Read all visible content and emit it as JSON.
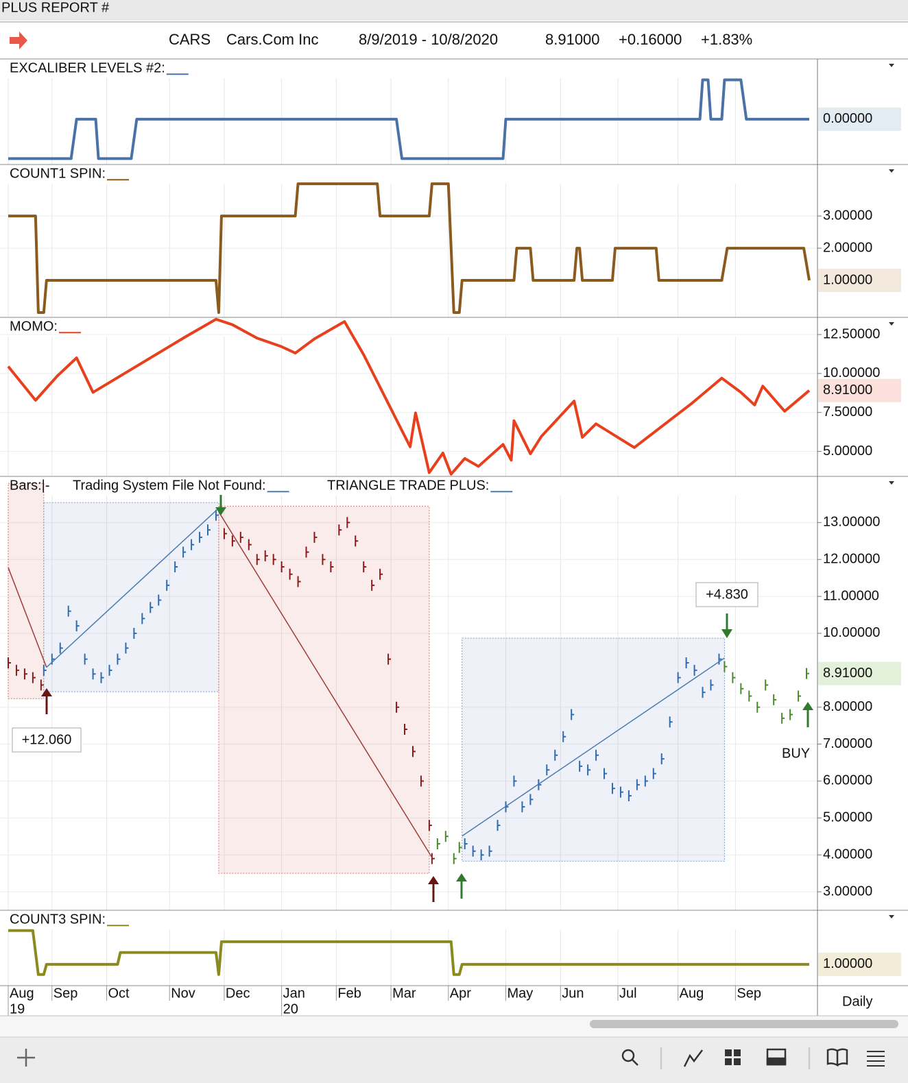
{
  "header": {
    "title": "PLUS REPORT #",
    "symbol": "CARS",
    "name": "Cars.Com Inc",
    "range": "8/9/2019 - 10/8/2020",
    "last": "8.91000",
    "change": "+0.16000",
    "change_pct": "+1.83%"
  },
  "timeframe": "Daily",
  "chart_data": [
    {
      "type": "line",
      "title": "EXCALIBER LEVELS #2:",
      "color": "#4a72a6",
      "label_bg": "#e3ebf3",
      "label_color": "#3b5b85",
      "last_label": "0.00000",
      "xlim": [
        0,
        293
      ],
      "ylim": [
        -1.15,
        1.53
      ],
      "x": [
        0,
        23,
        25,
        32,
        33,
        45,
        47,
        142,
        144,
        181,
        182,
        253,
        254,
        256,
        257,
        261,
        262,
        268,
        270,
        293
      ],
      "values": [
        -1,
        -1,
        0,
        0,
        -1,
        -1,
        0,
        0,
        -1,
        -1,
        0,
        0,
        1,
        1,
        0,
        0,
        1,
        1,
        0,
        0
      ]
    },
    {
      "type": "line",
      "title": "COUNT1 SPIN:",
      "color": "#8b5a1e",
      "label_bg": "#f2e8dc",
      "label_color": "#5a3d12",
      "last_label": "1.00000",
      "xlim": [
        0,
        293
      ],
      "ylim": [
        -0.15,
        4.6
      ],
      "yticks": [
        {
          "value": 2,
          "label": "2.00000"
        },
        {
          "value": 3,
          "label": "3.00000"
        }
      ],
      "x": [
        0,
        10,
        11,
        13,
        14,
        76,
        77,
        78,
        105,
        106,
        135,
        136,
        154,
        155,
        161,
        163,
        165,
        166,
        185,
        186,
        191,
        192,
        207,
        208,
        209,
        210,
        221,
        222,
        237,
        238,
        261,
        263,
        291,
        293
      ],
      "values": [
        3,
        3,
        0,
        0,
        1,
        1,
        0,
        3,
        3,
        4,
        4,
        3,
        3,
        4,
        4,
        0,
        0,
        1,
        1,
        2,
        2,
        1,
        1,
        2,
        2,
        1,
        1,
        2,
        2,
        1,
        1,
        2,
        2,
        1
      ]
    },
    {
      "type": "line",
      "title": "MOMO:",
      "color": "#e8401c",
      "label_bg": "#fbe0dc",
      "label_color": "#c0392b",
      "last_label": "8.91000",
      "xlim": [
        0,
        293
      ],
      "ylim": [
        3.4,
        13.6
      ],
      "yticks": [
        {
          "value": 5,
          "label": "5.00000"
        },
        {
          "value": 7.5,
          "label": "7.50000"
        },
        {
          "value": 10,
          "label": "10.00000"
        },
        {
          "value": 12.5,
          "label": "12.50000"
        }
      ],
      "x": [
        0,
        10,
        18,
        25,
        31,
        65,
        76,
        82,
        91,
        100,
        105,
        112,
        123,
        130,
        147,
        149,
        154,
        159,
        162,
        167,
        172,
        181,
        184,
        185,
        191,
        195,
        207,
        210,
        215,
        229,
        250,
        261,
        268,
        273,
        276,
        284,
        293
      ],
      "values": [
        10.45,
        8.28,
        9.85,
        11.0,
        8.79,
        12.37,
        13.48,
        13.13,
        12.27,
        11.72,
        11.31,
        12.22,
        13.33,
        11.21,
        5.3,
        7.47,
        3.64,
        4.9,
        3.54,
        4.55,
        4.04,
        5.45,
        4.44,
        6.97,
        4.85,
        5.96,
        8.23,
        5.91,
        6.77,
        5.25,
        8.08,
        9.7,
        8.79,
        7.98,
        9.19,
        7.58,
        8.91
      ]
    },
    {
      "type": "stock",
      "titles": [
        "Bars:|-",
        "Trading System File Not Found:",
        "TRIANGLE TRADE PLUS:"
      ],
      "label_bg": "#e3f0da",
      "label_color": "#2f6a1e",
      "last_label": "8.91000",
      "xlim": [
        0,
        293
      ],
      "ylim": [
        2.5,
        14.25
      ],
      "yticks": [
        {
          "value": 3,
          "label": "3.00000"
        },
        {
          "value": 4,
          "label": "4.00000"
        },
        {
          "value": 5,
          "label": "5.00000"
        },
        {
          "value": 6,
          "label": "6.00000"
        },
        {
          "value": 7,
          "label": "7.00000"
        },
        {
          "value": 8,
          "label": "8.00000"
        },
        {
          "value": 10,
          "label": "10.00000"
        },
        {
          "value": 11,
          "label": "11.00000"
        },
        {
          "value": 12,
          "label": "12.00000"
        },
        {
          "value": 13,
          "label": "13.00000"
        }
      ],
      "boxes": [
        {
          "color": "#e07070",
          "x": [
            0,
            13
          ],
          "y": [
            8.23,
            14.06
          ]
        },
        {
          "color": "#7a9ccc",
          "x": [
            13,
            77
          ],
          "y": [
            8.42,
            13.54
          ]
        },
        {
          "color": "#e07070",
          "x": [
            77,
            154
          ],
          "y": [
            3.5,
            13.44
          ]
        },
        {
          "color": "#7a9ccc",
          "x": [
            166,
            262
          ],
          "y": [
            3.83,
            9.87
          ]
        }
      ],
      "trendlines": [
        {
          "color": "#a33a3a",
          "x": [
            0,
            14
          ],
          "values": [
            11.78,
            9.08
          ]
        },
        {
          "color": "#4a7bb0",
          "x": [
            14,
            77
          ],
          "values": [
            9.08,
            13.39
          ]
        },
        {
          "color": "#a33a3a",
          "x": [
            77,
            155
          ],
          "values": [
            13.29,
            3.93
          ]
        },
        {
          "color": "#4a7bb0",
          "x": [
            166,
            262
          ],
          "values": [
            4.51,
            9.33
          ]
        }
      ],
      "segments": [
        {
          "color": "#8b1a1a",
          "x": [
            0,
            3,
            6,
            9,
            12
          ],
          "values": [
            9.2,
            9.0,
            8.9,
            8.8,
            8.6
          ]
        },
        {
          "color": "#2e6bb0",
          "x": [
            13,
            16,
            19,
            22,
            25,
            28,
            31,
            34,
            37,
            40,
            43,
            46,
            49,
            52,
            55,
            58,
            61,
            64,
            67,
            70,
            73,
            76
          ],
          "values": [
            9.0,
            9.3,
            9.6,
            10.6,
            10.2,
            9.3,
            8.9,
            8.8,
            9.0,
            9.3,
            9.6,
            10.0,
            10.4,
            10.7,
            10.9,
            11.3,
            11.8,
            12.2,
            12.4,
            12.6,
            12.8,
            13.2
          ]
        },
        {
          "color": "#8b1a1a",
          "x": [
            79,
            82,
            85,
            88,
            91,
            94,
            97,
            100,
            103,
            106,
            109,
            112,
            115,
            118,
            121,
            124,
            127,
            130,
            133,
            136,
            139,
            142,
            145,
            148,
            151,
            154,
            155
          ],
          "values": [
            12.7,
            12.5,
            12.6,
            12.4,
            12.0,
            12.1,
            12.0,
            11.8,
            11.6,
            11.4,
            12.2,
            12.6,
            12.0,
            11.8,
            12.8,
            13.0,
            12.5,
            11.8,
            11.3,
            11.6,
            9.3,
            8.0,
            7.4,
            6.8,
            6.0,
            4.8,
            3.9
          ]
        },
        {
          "color": "#4a8a2a",
          "x": [
            157,
            160,
            163,
            165
          ],
          "values": [
            4.3,
            4.5,
            3.9,
            4.2
          ]
        },
        {
          "color": "#2e6bb0",
          "x": [
            167,
            170,
            173,
            176,
            179,
            182,
            185,
            188,
            191,
            194,
            197,
            200,
            203,
            206,
            209,
            212,
            215,
            218,
            221,
            224,
            227,
            230,
            233,
            236,
            239,
            242,
            245,
            248,
            251,
            254,
            257,
            260
          ],
          "values": [
            4.3,
            4.1,
            4.0,
            4.1,
            4.8,
            5.3,
            6.0,
            5.3,
            5.5,
            5.9,
            6.3,
            6.7,
            7.2,
            7.8,
            6.4,
            6.3,
            6.7,
            6.2,
            5.8,
            5.7,
            5.6,
            5.9,
            6.0,
            6.2,
            6.6,
            7.6,
            8.8,
            9.2,
            9.0,
            8.4,
            8.6,
            9.3
          ]
        },
        {
          "color": "#4a8a2a",
          "x": [
            262,
            265,
            268,
            271,
            274,
            277,
            280,
            283,
            286,
            289,
            292
          ],
          "values": [
            9.1,
            8.8,
            8.5,
            8.3,
            8.0,
            8.6,
            8.2,
            7.7,
            7.8,
            8.3,
            8.91
          ]
        }
      ],
      "annotations": [
        {
          "text": "+12.060",
          "color": "#8b1a1a"
        },
        {
          "text": "+4.830",
          "color": "#2f7a2f"
        },
        {
          "text": "BUY",
          "color": "#111111"
        }
      ]
    },
    {
      "type": "line",
      "title": "COUNT3 SPIN:",
      "color": "#8a8a1e",
      "label_bg": "#f2ecd8",
      "label_color": "#6b6b1a",
      "last_label": "1.00000",
      "xlim": [
        0,
        293
      ],
      "ylim": [
        0.37,
        2.6
      ],
      "x": [
        0,
        9,
        11,
        13,
        14,
        40,
        41,
        76,
        77,
        78,
        162,
        163,
        165,
        166,
        293
      ],
      "values": [
        2,
        2,
        0.7,
        0.7,
        1,
        1,
        1.35,
        1.35,
        0.7,
        1.67,
        1.67,
        0.7,
        0.7,
        1,
        1
      ],
      "xticks": [
        {
          "value": 0,
          "label": "Aug"
        },
        {
          "value": 16,
          "label": "Sep"
        },
        {
          "value": 36,
          "label": "Oct"
        },
        {
          "value": 59,
          "label": "Nov"
        },
        {
          "value": 79,
          "label": "Dec"
        },
        {
          "value": 100,
          "label": "Jan"
        },
        {
          "value": 120,
          "label": "Feb"
        },
        {
          "value": 140,
          "label": "Mar"
        },
        {
          "value": 161,
          "label": "Apr"
        },
        {
          "value": 182,
          "label": "May"
        },
        {
          "value": 202,
          "label": "Jun"
        },
        {
          "value": 223,
          "label": "Jul"
        },
        {
          "value": 245,
          "label": "Aug"
        },
        {
          "value": 266,
          "label": "Sep"
        }
      ],
      "year_labels": [
        {
          "value": 0,
          "label": "19"
        },
        {
          "value": 100,
          "label": "20"
        }
      ]
    }
  ]
}
